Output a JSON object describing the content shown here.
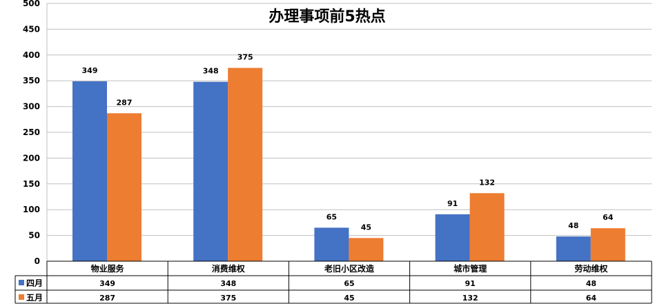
{
  "chart_data": {
    "type": "bar",
    "title": "办理事项前5热点",
    "categories": [
      "物业服务",
      "消费维权",
      "老旧小区改造",
      "城市管理",
      "劳动维权"
    ],
    "series": [
      {
        "name": "四月",
        "values": [
          349,
          348,
          65,
          91,
          48
        ],
        "color": "#4472C4"
      },
      {
        "name": "五月",
        "values": [
          287,
          375,
          45,
          132,
          64
        ],
        "color": "#ED7D31"
      }
    ],
    "ylim": [
      0,
      500
    ],
    "yticks": [
      0,
      50,
      100,
      150,
      200,
      250,
      300,
      350,
      400,
      450,
      500
    ],
    "grid": true,
    "legend": "data-table"
  }
}
